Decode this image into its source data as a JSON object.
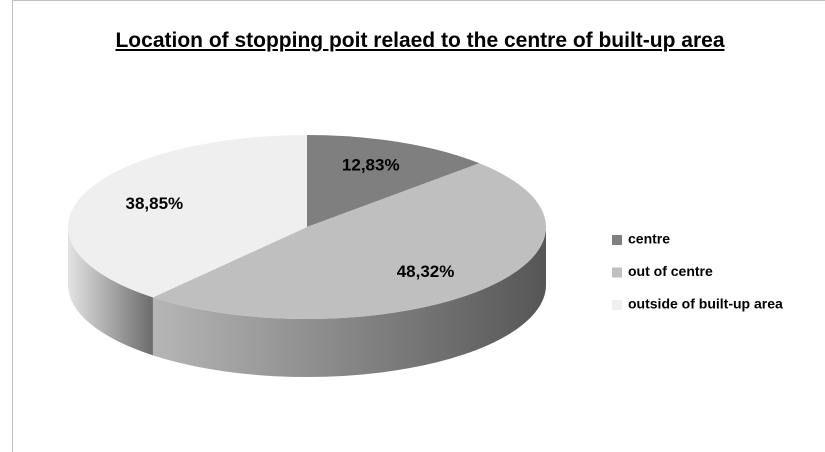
{
  "chart_data": {
    "type": "pie",
    "title": "Location of stopping poit relaed to the centre of built-up area",
    "categories": [
      "centre",
      "out of centre",
      "outside of built-up area"
    ],
    "values": [
      12.83,
      48.32,
      38.85
    ],
    "value_labels": [
      "12,83%",
      "48,32%",
      "38,85%"
    ],
    "colors": [
      "#7f7f7f",
      "#bfbfbf",
      "#efefef"
    ],
    "legend": "right"
  }
}
